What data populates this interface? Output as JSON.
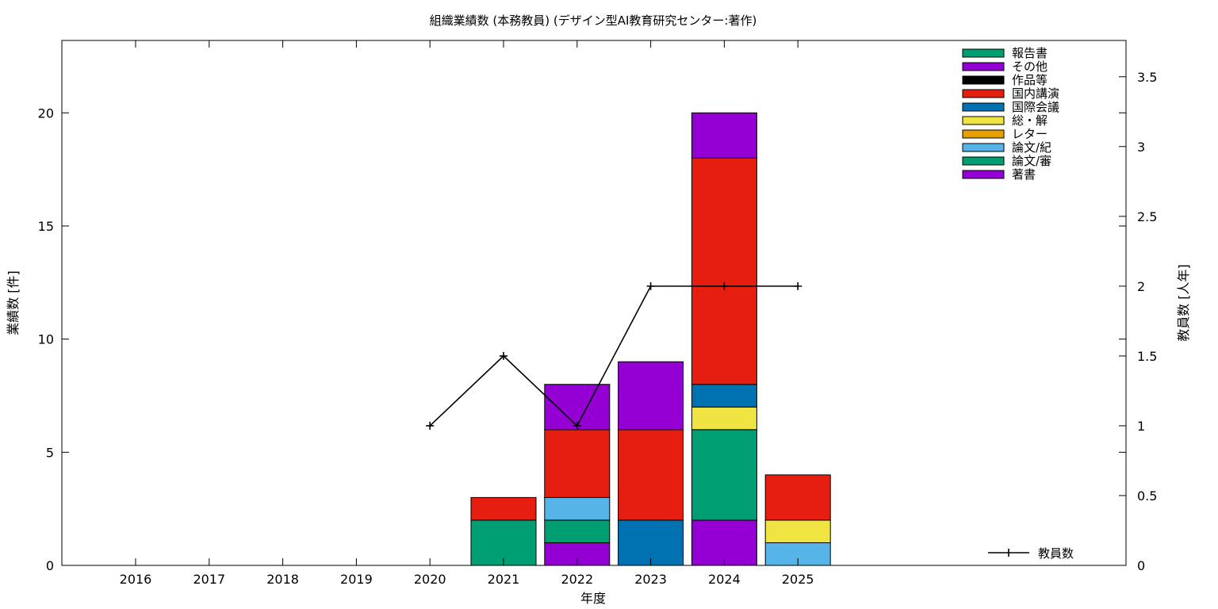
{
  "chart_data": {
    "type": "bar",
    "title": "組織業績数 (本務教員) (デザイン型AI教育研究センター:著作)",
    "xlabel": "年度",
    "ylabel": "業績数 [件]",
    "y2label": "教員数 [人年]",
    "categories": [
      "2016",
      "2017",
      "2018",
      "2019",
      "2020",
      "2021",
      "2022",
      "2023",
      "2024",
      "2025"
    ],
    "ylim": [
      0,
      23.2
    ],
    "y2lim": [
      0,
      3.76
    ],
    "yticks": [
      "0",
      "5",
      "10",
      "15",
      "20"
    ],
    "y2ticks": [
      "0",
      "0.5",
      "1",
      "1.5",
      "2",
      "2.5",
      "3",
      "3.5"
    ],
    "stacked": true,
    "legend_position": "top-right",
    "series": [
      {
        "name": "著書",
        "color": "#9400d3",
        "values": [
          0,
          0,
          0,
          0,
          0,
          0,
          1,
          0,
          2,
          0
        ]
      },
      {
        "name": "論文/審",
        "color": "#009e73",
        "values": [
          0,
          0,
          0,
          0,
          0,
          2,
          1,
          0,
          4,
          0
        ]
      },
      {
        "name": "論文/紀",
        "color": "#56b4e9",
        "values": [
          0,
          0,
          0,
          0,
          0,
          0,
          1,
          0,
          0,
          1
        ]
      },
      {
        "name": "レター",
        "color": "#e69f00",
        "values": [
          0,
          0,
          0,
          0,
          0,
          0,
          0,
          0,
          0,
          0
        ]
      },
      {
        "name": "総・解",
        "color": "#f0e442",
        "values": [
          0,
          0,
          0,
          0,
          0,
          0,
          0,
          0,
          1,
          1
        ]
      },
      {
        "name": "国際会議",
        "color": "#0072b2",
        "values": [
          0,
          0,
          0,
          0,
          0,
          0,
          0,
          2,
          1,
          0
        ]
      },
      {
        "name": "国内講演",
        "color": "#e51e10",
        "values": [
          0,
          0,
          0,
          0,
          0,
          1,
          3,
          4,
          10,
          2
        ]
      },
      {
        "name": "作品等",
        "color": "#000000",
        "values": [
          0,
          0,
          0,
          0,
          0,
          0,
          0,
          0,
          0,
          0
        ]
      },
      {
        "name": "その他",
        "color": "#9400d3",
        "values": [
          0,
          0,
          0,
          0,
          0,
          0,
          2,
          3,
          2,
          0
        ]
      },
      {
        "name": "報告書",
        "color": "#009e73",
        "values": [
          0,
          0,
          0,
          0,
          0,
          0,
          0,
          0,
          0,
          0
        ]
      }
    ],
    "line_series": {
      "name": "教員数",
      "color": "#000000",
      "axis": "y2",
      "x": [
        "2020",
        "2021",
        "2022",
        "2023",
        "2024",
        "2025"
      ],
      "values": [
        1,
        1.5,
        1,
        2,
        2,
        2
      ]
    }
  }
}
